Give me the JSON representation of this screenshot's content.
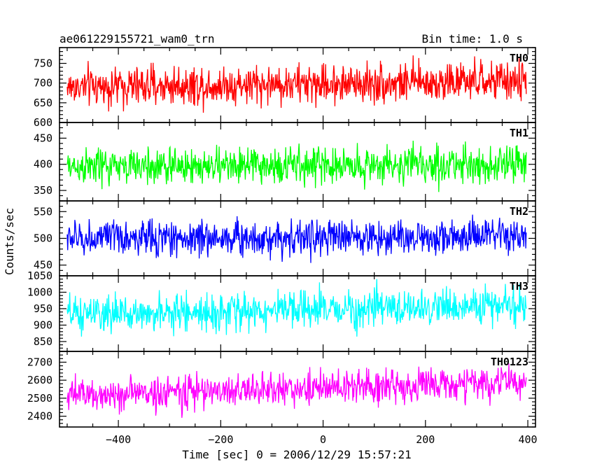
{
  "header": {
    "title": "ae061229155721_wam0_trn",
    "bin_time": "Bin time: 1.0 s"
  },
  "axes": {
    "xlabel": "Time [sec] 0 = 2006/12/29 15:57:21",
    "ylabel": "Counts/sec"
  },
  "chart_data": {
    "type": "line",
    "title": "ae061229155721_wam0_trn",
    "subtitle": "Bin time: 1.0 s",
    "xlabel": "Time [sec] 0 = 2006/12/29 15:57:21",
    "ylabel": "Counts/sec",
    "xlim": [
      -515,
      415
    ],
    "x_ticks": [
      -400,
      -200,
      0,
      200,
      400
    ],
    "x_ticks_text": [
      "−400",
      "−200",
      "0",
      "200",
      "400"
    ],
    "x_range_data": [
      -500,
      397
    ],
    "bin_seconds": 1,
    "grid": false,
    "legend": "none",
    "series": [
      {
        "name": "TH0",
        "color": "#ff0000",
        "mean_start": 690,
        "mean_end": 705,
        "amplitude": 45,
        "ylim": [
          600,
          790
        ],
        "y_ticks": [
          600,
          650,
          700,
          750
        ]
      },
      {
        "name": "TH1",
        "color": "#00ff00",
        "mean_start": 395,
        "mean_end": 400,
        "amplitude": 32,
        "ylim": [
          330,
          480
        ],
        "y_ticks": [
          350,
          400,
          450
        ]
      },
      {
        "name": "TH2",
        "color": "#0000ff",
        "mean_start": 500,
        "mean_end": 503,
        "amplitude": 30,
        "ylim": [
          430,
          570
        ],
        "y_ticks": [
          450,
          500,
          550
        ]
      },
      {
        "name": "TH3",
        "color": "#00ffff",
        "mean_start": 930,
        "mean_end": 960,
        "amplitude": 50,
        "ylim": [
          820,
          1050
        ],
        "y_ticks": [
          850,
          900,
          950,
          1000,
          1050
        ]
      },
      {
        "name": "TH0123",
        "color": "#ff00ff",
        "mean_start": 2515,
        "mean_end": 2590,
        "amplitude": 85,
        "ylim": [
          2340,
          2760
        ],
        "y_ticks": [
          2400,
          2500,
          2600,
          2700
        ]
      }
    ]
  }
}
